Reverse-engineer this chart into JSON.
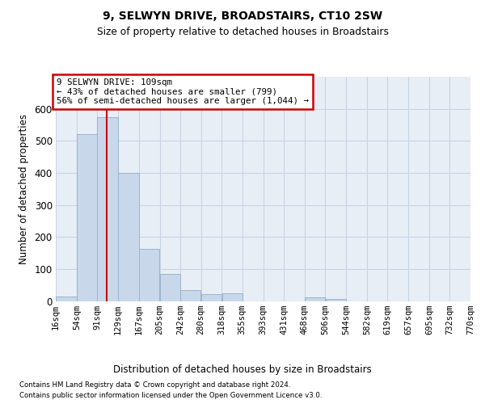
{
  "title1": "9, SELWYN DRIVE, BROADSTAIRS, CT10 2SW",
  "title2": "Size of property relative to detached houses in Broadstairs",
  "xlabel": "Distribution of detached houses by size in Broadstairs",
  "ylabel": "Number of detached properties",
  "annotation_line1": "9 SELWYN DRIVE: 109sqm",
  "annotation_line2": "← 43% of detached houses are smaller (799)",
  "annotation_line3": "56% of semi-detached houses are larger (1,044) →",
  "bin_edges": [
    16,
    54,
    91,
    129,
    167,
    205,
    242,
    280,
    318,
    355,
    393,
    431,
    468,
    506,
    544,
    582,
    619,
    657,
    695,
    732,
    770
  ],
  "bar_heights": [
    15,
    520,
    575,
    400,
    163,
    85,
    33,
    22,
    24,
    0,
    0,
    0,
    12,
    6,
    0,
    0,
    0,
    0,
    0,
    0
  ],
  "bar_color": "#c8d8ea",
  "bar_edge_color": "#9ab4cc",
  "red_line_x": 109,
  "annotation_box_facecolor": "#ffffff",
  "annotation_box_edgecolor": "#cc0000",
  "plot_bg_color": "#e8eef6",
  "grid_color": "#c8d4e4",
  "ylim": [
    0,
    700
  ],
  "yticks": [
    0,
    100,
    200,
    300,
    400,
    500,
    600
  ],
  "footer_line1": "Contains HM Land Registry data © Crown copyright and database right 2024.",
  "footer_line2": "Contains public sector information licensed under the Open Government Licence v3.0."
}
